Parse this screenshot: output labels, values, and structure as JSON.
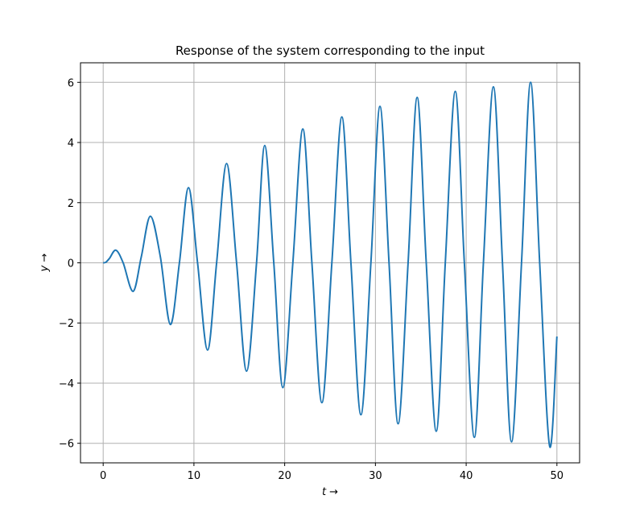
{
  "chart_data": {
    "type": "line",
    "title": "Response of the system corresponding to the input",
    "xlabel": "t →",
    "ylabel": "y →",
    "xlim": [
      -2.5,
      52.5
    ],
    "ylim": [
      -6.65,
      6.65
    ],
    "grid": true,
    "x_ticks": [
      0,
      10,
      20,
      30,
      40,
      50
    ],
    "y_ticks": [
      6,
      4,
      2,
      0,
      -2,
      -4,
      -6
    ],
    "x_tick_labels": [
      "0",
      "10",
      "20",
      "30",
      "40",
      "50"
    ],
    "y_tick_labels": [
      "6",
      "4",
      "2",
      "0",
      "−2",
      "−4",
      "−6"
    ],
    "series": [
      {
        "color": "#1f77b4",
        "x": [
          0,
          0.3,
          0.7,
          1.4,
          2.2,
          3.3,
          4.2,
          5.2,
          6.3,
          7.4,
          8.4,
          9.4,
          10.4,
          11.5,
          12.5,
          13.6,
          14.7,
          15.8,
          16.9,
          17.8,
          18.8,
          19.8,
          20.9,
          22.0,
          23.0,
          24.1,
          25.2,
          26.3,
          27.3,
          28.4,
          29.5,
          30.5,
          31.5,
          32.5,
          33.6,
          34.6,
          35.6,
          36.7,
          37.7,
          38.8,
          39.8,
          40.9,
          41.9,
          43.0,
          44.0,
          45.0,
          46.1,
          47.1,
          48.1,
          49.2,
          50.0
        ],
        "y": [
          0,
          0.02,
          0.15,
          0.42,
          0.0,
          -0.95,
          0.2,
          1.55,
          0.2,
          -2.05,
          0.0,
          2.5,
          0.0,
          -2.9,
          0.0,
          3.3,
          0.0,
          -3.6,
          0.0,
          3.9,
          0.0,
          -4.15,
          0.0,
          4.45,
          0.0,
          -4.65,
          0.0,
          4.85,
          0.0,
          -5.05,
          0.0,
          5.2,
          0.0,
          -5.35,
          0.0,
          5.5,
          0.0,
          -5.6,
          0.0,
          5.7,
          0.0,
          -5.8,
          0.0,
          5.85,
          0.0,
          -5.95,
          0.0,
          6.0,
          0.0,
          -6.1,
          -2.45
        ]
      }
    ]
  }
}
